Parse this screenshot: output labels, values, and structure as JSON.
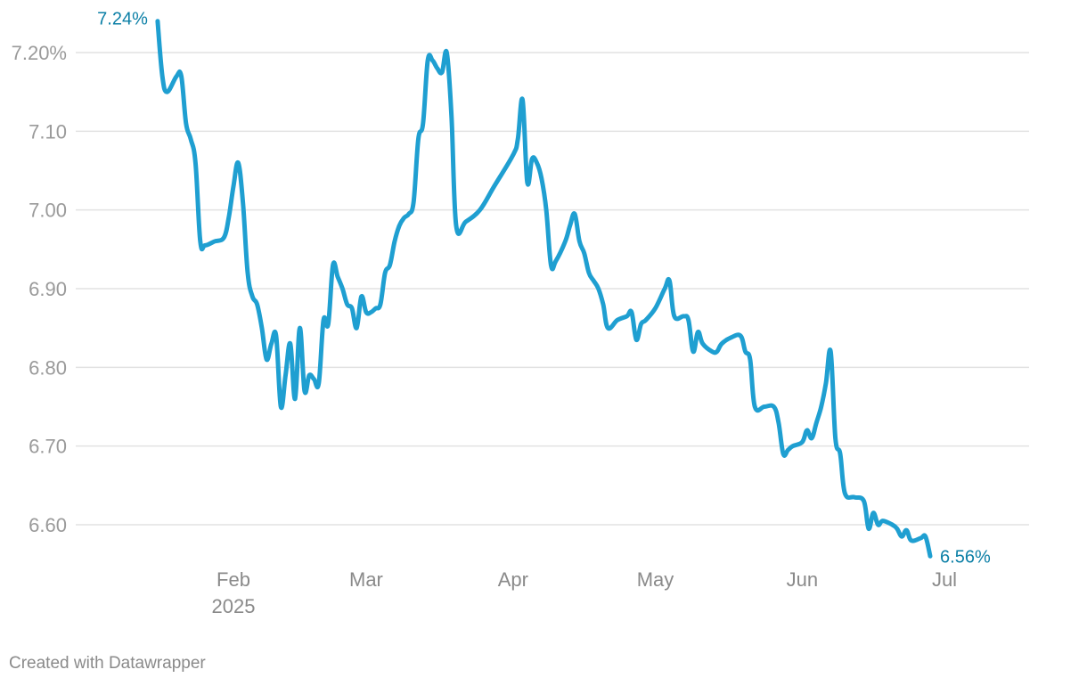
{
  "chart_data": {
    "type": "line",
    "title": "",
    "xlabel": "",
    "ylabel": "",
    "ylim": [
      6.55,
      7.25
    ],
    "yticks": [
      {
        "value": 7.2,
        "label": "7.20%"
      },
      {
        "value": 7.1,
        "label": "7.10"
      },
      {
        "value": 7.0,
        "label": "7.00"
      },
      {
        "value": 6.9,
        "label": "6.90"
      },
      {
        "value": 6.8,
        "label": "6.80"
      },
      {
        "value": 6.7,
        "label": "6.70"
      },
      {
        "value": 6.6,
        "label": "6.60"
      }
    ],
    "xticks": [
      {
        "date": "2025-02-01",
        "label": "Feb",
        "sublabel": "2025"
      },
      {
        "date": "2025-03-01",
        "label": "Mar"
      },
      {
        "date": "2025-04-01",
        "label": "Apr"
      },
      {
        "date": "2025-05-01",
        "label": "May"
      },
      {
        "date": "2025-06-01",
        "label": "Jun"
      },
      {
        "date": "2025-07-01",
        "label": "Jul"
      }
    ],
    "grid": true,
    "line_color": "#1f9fd1",
    "label_color": "#0b7fa6",
    "start_label": "7.24%",
    "end_label": "6.56%",
    "series": [
      {
        "points": [
          [
            "2025-01-16",
            7.24
          ],
          [
            "2025-01-17",
            7.17
          ],
          [
            "2025-01-18",
            7.15
          ],
          [
            "2025-01-20",
            7.17
          ],
          [
            "2025-01-21",
            7.17
          ],
          [
            "2025-01-22",
            7.11
          ],
          [
            "2025-01-23",
            7.09
          ],
          [
            "2025-01-24",
            7.06
          ],
          [
            "2025-01-25",
            6.96
          ],
          [
            "2025-01-26",
            6.955
          ],
          [
            "2025-01-28",
            6.96
          ],
          [
            "2025-01-30",
            6.965
          ],
          [
            "2025-01-31",
            6.99
          ],
          [
            "2025-02-01",
            7.03
          ],
          [
            "2025-02-02",
            7.06
          ],
          [
            "2025-02-03",
            7.01
          ],
          [
            "2025-02-04",
            6.92
          ],
          [
            "2025-02-05",
            6.89
          ],
          [
            "2025-02-06",
            6.88
          ],
          [
            "2025-02-07",
            6.85
          ],
          [
            "2025-02-08",
            6.81
          ],
          [
            "2025-02-09",
            6.83
          ],
          [
            "2025-02-10",
            6.84
          ],
          [
            "2025-02-11",
            6.75
          ],
          [
            "2025-02-12",
            6.79
          ],
          [
            "2025-02-13",
            6.83
          ],
          [
            "2025-02-14",
            6.76
          ],
          [
            "2025-02-15",
            6.85
          ],
          [
            "2025-02-16",
            6.77
          ],
          [
            "2025-02-17",
            6.79
          ],
          [
            "2025-02-18",
            6.785
          ],
          [
            "2025-02-19",
            6.78
          ],
          [
            "2025-02-20",
            6.86
          ],
          [
            "2025-02-21",
            6.855
          ],
          [
            "2025-02-22",
            6.93
          ],
          [
            "2025-02-23",
            6.915
          ],
          [
            "2025-02-24",
            6.9
          ],
          [
            "2025-02-25",
            6.88
          ],
          [
            "2025-02-26",
            6.875
          ],
          [
            "2025-02-27",
            6.85
          ],
          [
            "2025-02-28",
            6.89
          ],
          [
            "2025-03-01",
            6.87
          ],
          [
            "2025-03-02",
            6.87
          ],
          [
            "2025-03-03",
            6.875
          ],
          [
            "2025-03-04",
            6.88
          ],
          [
            "2025-03-05",
            6.92
          ],
          [
            "2025-03-06",
            6.93
          ],
          [
            "2025-03-07",
            6.96
          ],
          [
            "2025-03-08",
            6.98
          ],
          [
            "2025-03-09",
            6.99
          ],
          [
            "2025-03-10",
            6.995
          ],
          [
            "2025-03-11",
            7.01
          ],
          [
            "2025-03-12",
            7.09
          ],
          [
            "2025-03-13",
            7.11
          ],
          [
            "2025-03-14",
            7.19
          ],
          [
            "2025-03-15",
            7.19
          ],
          [
            "2025-03-16",
            7.18
          ],
          [
            "2025-03-17",
            7.175
          ],
          [
            "2025-03-18",
            7.2
          ],
          [
            "2025-03-19",
            7.12
          ],
          [
            "2025-03-20",
            6.98
          ],
          [
            "2025-03-22",
            6.985
          ],
          [
            "2025-03-25",
            7.0
          ],
          [
            "2025-03-28",
            7.03
          ],
          [
            "2025-04-01",
            7.07
          ],
          [
            "2025-04-02",
            7.09
          ],
          [
            "2025-04-03",
            7.14
          ],
          [
            "2025-04-04",
            7.035
          ],
          [
            "2025-04-05",
            7.065
          ],
          [
            "2025-04-06",
            7.06
          ],
          [
            "2025-04-07",
            7.04
          ],
          [
            "2025-04-08",
            7.0
          ],
          [
            "2025-04-09",
            6.93
          ],
          [
            "2025-04-10",
            6.935
          ],
          [
            "2025-04-12",
            6.96
          ],
          [
            "2025-04-13",
            6.98
          ],
          [
            "2025-04-14",
            6.995
          ],
          [
            "2025-04-15",
            6.96
          ],
          [
            "2025-04-16",
            6.945
          ],
          [
            "2025-04-17",
            6.92
          ],
          [
            "2025-04-18",
            6.91
          ],
          [
            "2025-04-19",
            6.9
          ],
          [
            "2025-04-20",
            6.88
          ],
          [
            "2025-04-21",
            6.85
          ],
          [
            "2025-04-23",
            6.86
          ],
          [
            "2025-04-25",
            6.865
          ],
          [
            "2025-04-26",
            6.87
          ],
          [
            "2025-04-27",
            6.835
          ],
          [
            "2025-04-28",
            6.855
          ],
          [
            "2025-04-29",
            6.86
          ],
          [
            "2025-05-01",
            6.875
          ],
          [
            "2025-05-03",
            6.9
          ],
          [
            "2025-05-04",
            6.91
          ],
          [
            "2025-05-05",
            6.865
          ],
          [
            "2025-05-07",
            6.865
          ],
          [
            "2025-05-08",
            6.86
          ],
          [
            "2025-05-09",
            6.82
          ],
          [
            "2025-05-10",
            6.845
          ],
          [
            "2025-05-11",
            6.83
          ],
          [
            "2025-05-13",
            6.82
          ],
          [
            "2025-05-14",
            6.82
          ],
          [
            "2025-05-15",
            6.83
          ],
          [
            "2025-05-17",
            6.838
          ],
          [
            "2025-05-19",
            6.84
          ],
          [
            "2025-05-20",
            6.82
          ],
          [
            "2025-05-21",
            6.81
          ],
          [
            "2025-05-22",
            6.75
          ],
          [
            "2025-05-24",
            6.75
          ],
          [
            "2025-05-26",
            6.75
          ],
          [
            "2025-05-27",
            6.73
          ],
          [
            "2025-05-28",
            6.69
          ],
          [
            "2025-05-29",
            6.695
          ],
          [
            "2025-05-30",
            6.7
          ],
          [
            "2025-06-01",
            6.705
          ],
          [
            "2025-06-02",
            6.72
          ],
          [
            "2025-06-03",
            6.71
          ],
          [
            "2025-06-04",
            6.73
          ],
          [
            "2025-06-05",
            6.75
          ],
          [
            "2025-06-06",
            6.78
          ],
          [
            "2025-06-07",
            6.82
          ],
          [
            "2025-06-08",
            6.71
          ],
          [
            "2025-06-09",
            6.69
          ],
          [
            "2025-06-10",
            6.64
          ],
          [
            "2025-06-12",
            6.635
          ],
          [
            "2025-06-14",
            6.63
          ],
          [
            "2025-06-15",
            6.595
          ],
          [
            "2025-06-16",
            6.615
          ],
          [
            "2025-06-17",
            6.6
          ],
          [
            "2025-06-18",
            6.605
          ],
          [
            "2025-06-20",
            6.6
          ],
          [
            "2025-06-21",
            6.595
          ],
          [
            "2025-06-22",
            6.585
          ],
          [
            "2025-06-23",
            6.593
          ],
          [
            "2025-06-24",
            6.58
          ],
          [
            "2025-06-26",
            6.583
          ],
          [
            "2025-06-27",
            6.585
          ],
          [
            "2025-06-28",
            6.56
          ]
        ]
      }
    ]
  },
  "footer": {
    "credit": "Created with Datawrapper"
  }
}
